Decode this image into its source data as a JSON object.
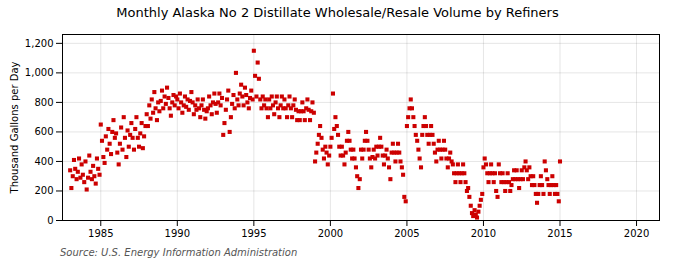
{
  "chart_data": {
    "type": "scatter",
    "title": "Monthly Alaska No 2 Distillate Wholesale/Resale Volume by Refiners",
    "ylabel": "Thousand Gallons per Day",
    "source": "Source: U.S. Energy Information Administration",
    "color": "#cc0000",
    "marker": "square",
    "grid": true,
    "xlim": [
      1982.5,
      2021.5
    ],
    "ylim": [
      0,
      1260
    ],
    "xticks": [
      1985,
      1990,
      1995,
      2000,
      2005,
      2010,
      2015,
      2020
    ],
    "yticks": [
      0,
      200,
      400,
      600,
      800,
      {
        "value": 1000,
        "label": "1,000"
      },
      {
        "value": 1200,
        "label": "1,200"
      }
    ],
    "x": [
      1983.0,
      1983.08,
      1983.17,
      1983.25,
      1983.33,
      1983.42,
      1983.5,
      1983.58,
      1983.67,
      1983.75,
      1983.83,
      1983.92,
      1984.0,
      1984.08,
      1984.17,
      1984.25,
      1984.33,
      1984.42,
      1984.5,
      1984.58,
      1984.67,
      1984.75,
      1984.83,
      1984.92,
      1985.0,
      1985.08,
      1985.17,
      1985.25,
      1985.33,
      1985.42,
      1985.5,
      1985.58,
      1985.67,
      1985.75,
      1985.83,
      1985.92,
      1986.0,
      1986.08,
      1986.17,
      1986.25,
      1986.33,
      1986.42,
      1986.5,
      1986.58,
      1986.67,
      1986.75,
      1986.83,
      1986.92,
      1987.0,
      1987.08,
      1987.17,
      1987.25,
      1987.33,
      1987.42,
      1987.5,
      1987.58,
      1987.67,
      1987.75,
      1987.83,
      1987.92,
      1988.0,
      1988.08,
      1988.17,
      1988.25,
      1988.33,
      1988.42,
      1988.5,
      1988.58,
      1988.67,
      1988.75,
      1988.83,
      1988.92,
      1989.0,
      1989.08,
      1989.17,
      1989.25,
      1989.33,
      1989.42,
      1989.5,
      1989.58,
      1989.67,
      1989.75,
      1989.83,
      1989.92,
      1990.0,
      1990.08,
      1990.17,
      1990.25,
      1990.33,
      1990.42,
      1990.5,
      1990.58,
      1990.67,
      1990.75,
      1990.83,
      1990.92,
      1991.0,
      1991.08,
      1991.17,
      1991.25,
      1991.33,
      1991.42,
      1991.5,
      1991.58,
      1991.67,
      1991.75,
      1991.83,
      1991.92,
      1992.0,
      1992.08,
      1992.17,
      1992.25,
      1992.33,
      1992.42,
      1992.5,
      1992.58,
      1992.67,
      1992.75,
      1992.83,
      1992.92,
      1993.0,
      1993.08,
      1993.17,
      1993.25,
      1993.33,
      1993.42,
      1993.5,
      1993.58,
      1993.67,
      1993.75,
      1993.83,
      1993.92,
      1994.0,
      1994.08,
      1994.17,
      1994.25,
      1994.33,
      1994.42,
      1994.5,
      1994.58,
      1994.67,
      1994.75,
      1994.83,
      1994.92,
      1995.0,
      1995.08,
      1995.17,
      1995.25,
      1995.33,
      1995.42,
      1995.5,
      1995.58,
      1995.67,
      1995.75,
      1995.83,
      1995.92,
      1996.0,
      1996.08,
      1996.17,
      1996.25,
      1996.33,
      1996.42,
      1996.5,
      1996.58,
      1996.67,
      1996.75,
      1996.83,
      1996.92,
      1997.0,
      1997.08,
      1997.17,
      1997.25,
      1997.33,
      1997.42,
      1997.5,
      1997.58,
      1997.67,
      1997.75,
      1997.83,
      1997.92,
      1998.0,
      1998.08,
      1998.17,
      1998.25,
      1998.33,
      1998.42,
      1998.5,
      1998.58,
      1998.67,
      1998.75,
      1998.83,
      1998.92,
      1999.0,
      1999.08,
      1999.17,
      1999.25,
      1999.33,
      1999.42,
      1999.5,
      1999.58,
      1999.67,
      1999.75,
      1999.83,
      1999.92,
      2000.0,
      2000.08,
      2000.17,
      2000.25,
      2000.33,
      2000.42,
      2000.5,
      2000.58,
      2000.67,
      2000.75,
      2000.83,
      2000.92,
      2001.0,
      2001.08,
      2001.17,
      2001.25,
      2001.33,
      2001.42,
      2001.5,
      2001.58,
      2001.67,
      2001.75,
      2001.83,
      2001.92,
      2002.0,
      2002.08,
      2002.17,
      2002.25,
      2002.33,
      2002.42,
      2002.5,
      2002.58,
      2002.67,
      2002.75,
      2002.83,
      2002.92,
      2003.0,
      2003.08,
      2003.17,
      2003.25,
      2003.33,
      2003.42,
      2003.5,
      2003.58,
      2003.67,
      2003.75,
      2003.83,
      2003.92,
      2004.0,
      2004.08,
      2004.17,
      2004.25,
      2004.33,
      2004.42,
      2004.5,
      2004.58,
      2004.67,
      2004.75,
      2004.83,
      2004.92,
      2005.0,
      2005.08,
      2005.17,
      2005.25,
      2005.33,
      2005.42,
      2005.5,
      2005.58,
      2005.67,
      2005.75,
      2005.83,
      2005.92,
      2006.0,
      2006.08,
      2006.17,
      2006.25,
      2006.33,
      2006.42,
      2006.5,
      2006.58,
      2006.67,
      2006.75,
      2006.83,
      2006.92,
      2007.0,
      2007.08,
      2007.17,
      2007.25,
      2007.33,
      2007.42,
      2007.5,
      2007.58,
      2007.67,
      2007.75,
      2007.83,
      2007.92,
      2008.0,
      2008.08,
      2008.17,
      2008.25,
      2008.33,
      2008.42,
      2008.5,
      2008.58,
      2008.67,
      2008.75,
      2008.83,
      2008.92,
      2009.0,
      2009.08,
      2009.17,
      2009.25,
      2009.33,
      2009.42,
      2009.5,
      2009.58,
      2009.67,
      2009.75,
      2009.83,
      2009.92,
      2010.0,
      2010.08,
      2010.17,
      2010.25,
      2010.33,
      2010.42,
      2010.5,
      2010.58,
      2010.67,
      2010.75,
      2010.83,
      2010.92,
      2011.0,
      2011.08,
      2011.17,
      2011.25,
      2011.33,
      2011.42,
      2011.5,
      2011.58,
      2011.67,
      2011.75,
      2011.83,
      2011.92,
      2012.0,
      2012.08,
      2012.17,
      2012.25,
      2012.33,
      2012.42,
      2012.5,
      2012.58,
      2012.67,
      2012.75,
      2012.83,
      2012.92,
      2013.0,
      2013.08,
      2013.17,
      2013.25,
      2013.33,
      2013.42,
      2013.5,
      2013.58,
      2013.67,
      2013.75,
      2013.83,
      2013.92,
      2014.0,
      2014.08,
      2014.17,
      2014.25,
      2014.33,
      2014.42,
      2014.5,
      2014.58,
      2014.67,
      2014.75,
      2014.83,
      2014.92,
      2015.0
    ],
    "values": [
      340,
      220,
      300,
      410,
      350,
      280,
      330,
      420,
      290,
      380,
      310,
      260,
      400,
      210,
      290,
      440,
      330,
      280,
      370,
      300,
      250,
      420,
      350,
      310,
      650,
      540,
      430,
      390,
      570,
      480,
      620,
      520,
      450,
      600,
      680,
      560,
      590,
      460,
      380,
      520,
      630,
      480,
      700,
      560,
      430,
      610,
      500,
      580,
      660,
      560,
      480,
      620,
      700,
      560,
      500,
      590,
      660,
      490,
      570,
      640,
      720,
      640,
      780,
      690,
      820,
      730,
      870,
      760,
      680,
      800,
      740,
      810,
      880,
      760,
      840,
      790,
      900,
      830,
      760,
      710,
      800,
      850,
      780,
      840,
      820,
      760,
      860,
      800,
      730,
      780,
      840,
      770,
      820,
      750,
      810,
      870,
      800,
      720,
      780,
      750,
      820,
      760,
      700,
      780,
      820,
      750,
      690,
      740,
      760,
      840,
      780,
      720,
      800,
      860,
      790,
      730,
      800,
      860,
      780,
      830,
      580,
      660,
      750,
      820,
      880,
      600,
      700,
      790,
      850,
      760,
      1000,
      820,
      780,
      860,
      920,
      840,
      780,
      900,
      850,
      800,
      760,
      830,
      880,
      820,
      1150,
      980,
      840,
      1070,
      960,
      820,
      760,
      840,
      780,
      820,
      760,
      700,
      820,
      760,
      840,
      780,
      720,
      800,
      840,
      760,
      700,
      780,
      840,
      760,
      820,
      760,
      700,
      780,
      840,
      760,
      700,
      780,
      820,
      750,
      680,
      740,
      680,
      740,
      800,
      740,
      680,
      760,
      820,
      750,
      680,
      740,
      800,
      730,
      400,
      460,
      520,
      580,
      640,
      560,
      480,
      420,
      500,
      460,
      380,
      440,
      500,
      560,
      860,
      620,
      700,
      640,
      580,
      500,
      440,
      500,
      440,
      380,
      460,
      540,
      600,
      540,
      480,
      420,
      480,
      420,
      360,
      300,
      220,
      280,
      480,
      420,
      480,
      540,
      600,
      540,
      480,
      420,
      360,
      430,
      480,
      420,
      500,
      440,
      500,
      560,
      500,
      440,
      380,
      440,
      480,
      420,
      360,
      280,
      460,
      520,
      460,
      400,
      460,
      520,
      460,
      400,
      360,
      310,
      160,
      130,
      640,
      700,
      760,
      820,
      760,
      700,
      640,
      580,
      540,
      480,
      420,
      360,
      580,
      640,
      700,
      640,
      580,
      520,
      580,
      640,
      580,
      520,
      460,
      400,
      480,
      540,
      480,
      420,
      480,
      540,
      480,
      420,
      360,
      420,
      460,
      400,
      380,
      320,
      260,
      320,
      380,
      320,
      260,
      320,
      380,
      320,
      260,
      200,
      220,
      160,
      100,
      50,
      30,
      70,
      40,
      20,
      60,
      100,
      140,
      180,
      360,
      420,
      380,
      320,
      260,
      320,
      380,
      320,
      260,
      320,
      200,
      160,
      380,
      320,
      260,
      320,
      260,
      200,
      260,
      320,
      260,
      200,
      240,
      280,
      340,
      280,
      340,
      280,
      220,
      280,
      340,
      280,
      360,
      400,
      340,
      280,
      360,
      300,
      240,
      300,
      240,
      180,
      120,
      180,
      240,
      300,
      240,
      180,
      400,
      340,
      280,
      240,
      180,
      240,
      300,
      240,
      180,
      240,
      180,
      130,
      400
    ]
  }
}
